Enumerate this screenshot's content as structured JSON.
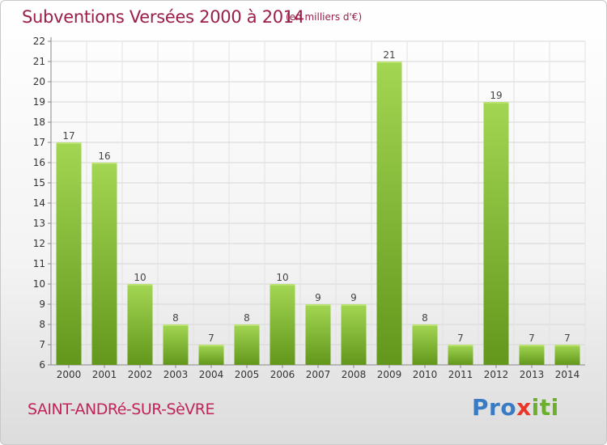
{
  "chart_data": {
    "type": "bar",
    "title": "Subventions Versées 2000 à 2014",
    "subtitle": "(en milliers d'€)",
    "categories": [
      "2000",
      "2001",
      "2002",
      "2003",
      "2004",
      "2005",
      "2006",
      "2007",
      "2008",
      "2009",
      "2010",
      "2011",
      "2012",
      "2013",
      "2014"
    ],
    "values": [
      17,
      16,
      10,
      8,
      7,
      8,
      10,
      9,
      9,
      21,
      8,
      7,
      19,
      7,
      7
    ],
    "ylim": [
      6,
      22
    ],
    "yticks": [
      6,
      7,
      8,
      9,
      10,
      11,
      12,
      13,
      14,
      15,
      16,
      17,
      18,
      19,
      20,
      21,
      22
    ],
    "grid": true,
    "colors": {
      "bar_light": "#9fd44d",
      "bar_dark": "#62971c",
      "title": "#9b1e4a"
    }
  },
  "footer": {
    "city": "SAINT-ANDRé-SUR-SèVRE",
    "logo": {
      "parts": [
        "Pro",
        "x",
        "iti"
      ],
      "colors": [
        "#3a7cc4",
        "#e8362a",
        "#6bb02a"
      ]
    }
  }
}
